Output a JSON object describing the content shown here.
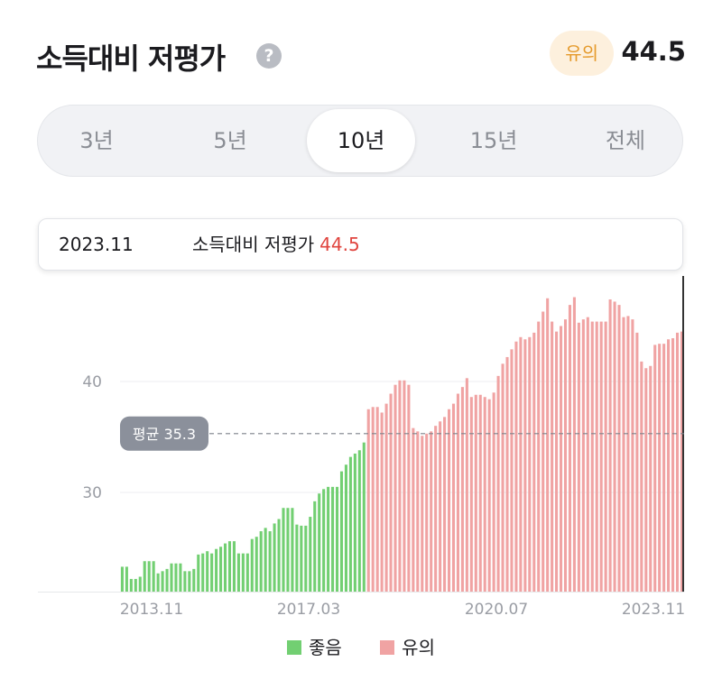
{
  "header": {
    "title": "소득대비 저평가",
    "help_icon": "question-circle-icon",
    "help_glyph": "?",
    "badge": "유의",
    "score": "44.5"
  },
  "tabs": [
    {
      "label": "3년",
      "active": false
    },
    {
      "label": "5년",
      "active": false
    },
    {
      "label": "10년",
      "active": true
    },
    {
      "label": "15년",
      "active": false
    },
    {
      "label": "전체",
      "active": false
    }
  ],
  "tooltip": {
    "date": "2023.11",
    "label": "소득대비 저평가",
    "value": "44.5"
  },
  "colors": {
    "good": "#72cf72",
    "caution": "#f0a3a3",
    "accent": "#e0443e",
    "badge_bg": "#fdf0dd",
    "badge_text": "#e59a2b"
  },
  "chart_data": {
    "type": "bar",
    "y_ticks": [
      "30",
      "40"
    ],
    "ylim": [
      21,
      50
    ],
    "x_tick_labels": [
      "2013.11",
      "2017.03",
      "2020.07",
      "2023.11"
    ],
    "average": {
      "label": "평균 35.3",
      "value": 35.3
    },
    "legend": [
      "좋음",
      "유의"
    ],
    "series": [
      {
        "name": "좋음",
        "values": [
          23.3,
          23.3,
          22.2,
          22.2,
          22.4,
          23.8,
          23.8,
          23.8,
          22.7,
          22.9,
          23.1,
          23.6,
          23.6,
          23.6,
          22.9,
          22.9,
          23.1,
          24.4,
          24.5,
          24.7,
          24.5,
          24.9,
          25.1,
          25.4,
          25.6,
          25.6,
          24.5,
          24.5,
          24.5,
          25.8,
          26.0,
          26.5,
          26.8,
          26.5,
          27.2,
          27.6,
          28.6,
          28.6,
          28.6,
          27.1,
          27.0,
          27.0,
          27.8,
          29.2,
          29.9,
          30.3,
          30.5,
          30.5,
          30.5,
          31.9,
          32.5,
          33.2,
          33.5,
          33.8,
          34.5
        ]
      },
      {
        "name": "유의",
        "values": [
          37.5,
          37.7,
          37.7,
          37.2,
          38.0,
          38.9,
          39.7,
          40.1,
          40.1,
          39.7,
          35.8,
          35.5,
          35.1,
          35.3,
          35.5,
          36.0,
          36.4,
          36.8,
          37.5,
          38.0,
          38.9,
          39.5,
          40.3,
          38.6,
          38.8,
          38.8,
          38.6,
          38.4,
          39.0,
          40.5,
          41.6,
          42.2,
          42.9,
          43.6,
          44.0,
          43.8,
          44.0,
          44.4,
          45.4,
          46.3,
          47.5,
          45.4,
          44.5,
          45.0,
          45.6,
          46.9,
          47.6,
          45.3,
          45.6,
          45.8,
          45.4,
          45.4,
          45.4,
          45.4,
          47.4,
          47.2,
          46.9,
          45.8,
          45.9,
          45.6,
          44.4,
          41.8,
          41.2,
          41.4,
          43.3,
          43.4,
          43.4,
          43.8,
          43.9,
          44.4,
          44.5
        ]
      }
    ]
  }
}
